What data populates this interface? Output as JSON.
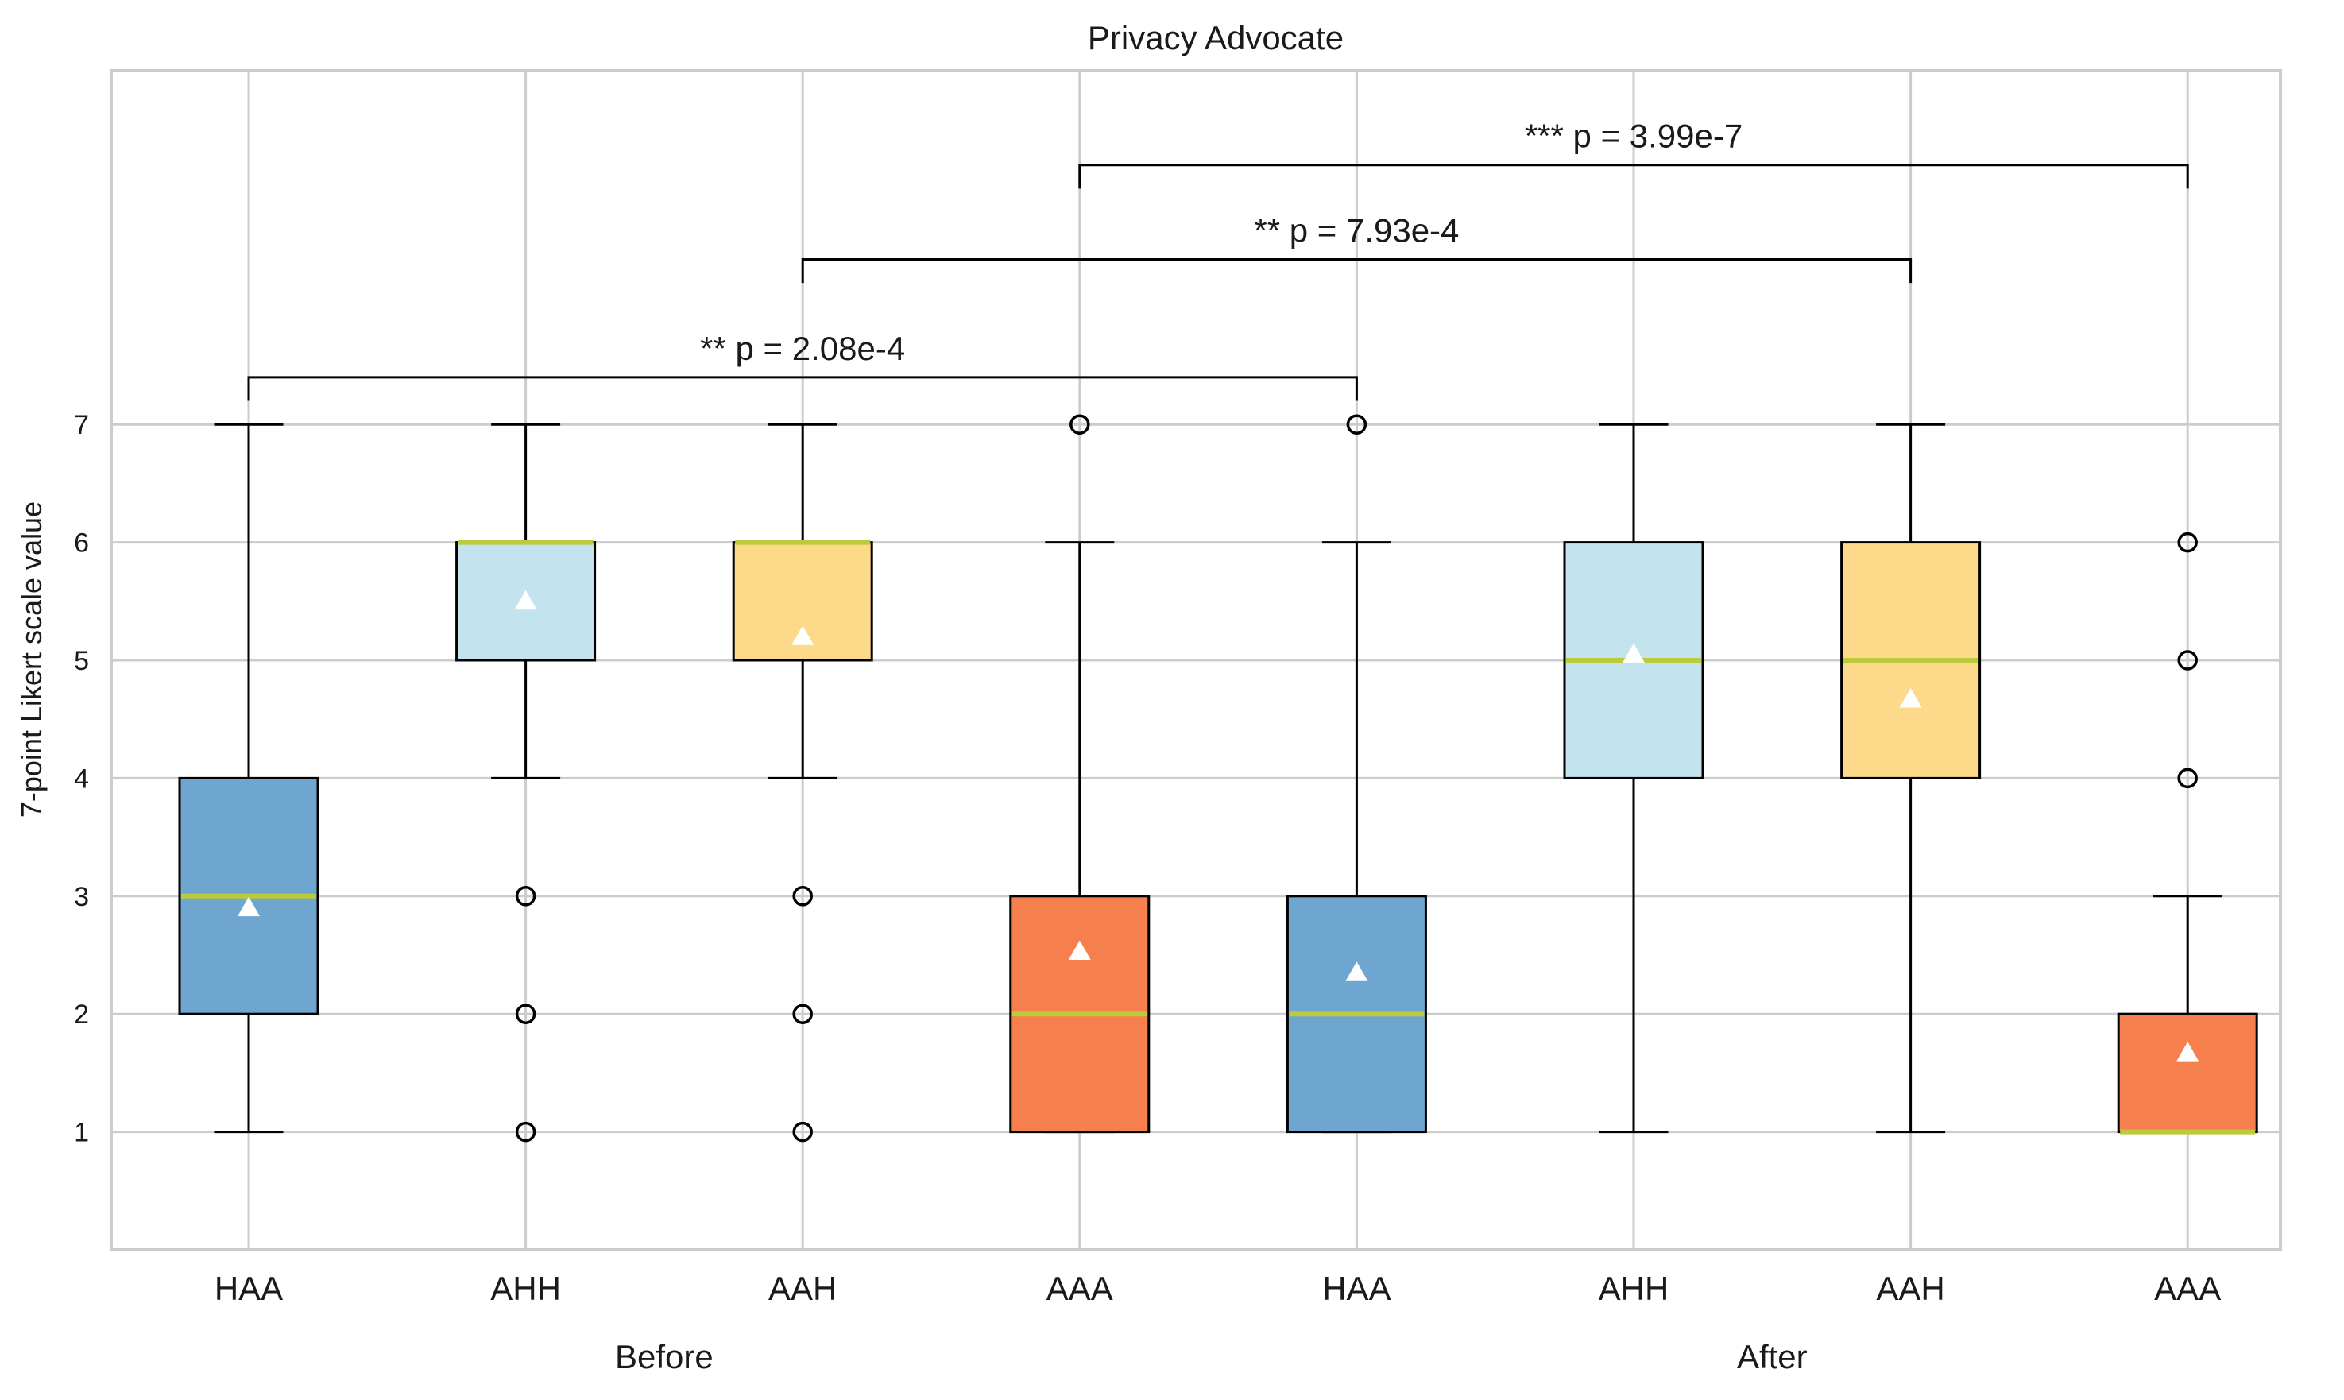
{
  "chart_data": {
    "type": "boxplot",
    "title": "Privacy Advocate",
    "ylabel": "7-point Likert scale value",
    "xlabel": "",
    "ylim": [
      0,
      10
    ],
    "yticks": [
      1,
      2,
      3,
      4,
      5,
      6,
      7
    ],
    "grid": true,
    "groups": [
      {
        "label": "Before",
        "box_indices": [
          0,
          1,
          2,
          3
        ]
      },
      {
        "label": "After",
        "box_indices": [
          4,
          5,
          6,
          7
        ]
      }
    ],
    "colors": {
      "HAA": "#6fa6cf",
      "AHH": "#c3e4ef",
      "AAH": "#fdda8a",
      "AAA": "#f5804d",
      "median": "#bccb3a",
      "mean_marker": "#ffffff"
    },
    "boxes": [
      {
        "label": "HAA",
        "phase": "Before",
        "whisker_low": 1,
        "q1": 2,
        "median": 3,
        "q3": 4,
        "whisker_high": 7,
        "mean": 2.9,
        "fliers": []
      },
      {
        "label": "AHH",
        "phase": "Before",
        "whisker_low": 4,
        "q1": 5,
        "median": 6,
        "q3": 6,
        "whisker_high": 7,
        "mean": 5.5,
        "fliers": [
          3,
          2,
          1
        ]
      },
      {
        "label": "AAH",
        "phase": "Before",
        "whisker_low": 4,
        "q1": 5,
        "median": 6,
        "q3": 6,
        "whisker_high": 7,
        "mean": 5.2,
        "fliers": [
          3,
          2,
          1
        ]
      },
      {
        "label": "AAA",
        "phase": "Before",
        "whisker_low": 1,
        "q1": 1,
        "median": 2,
        "q3": 3,
        "whisker_high": 6,
        "mean": 2.53,
        "fliers": [
          7
        ]
      },
      {
        "label": "HAA",
        "phase": "After",
        "whisker_low": 1,
        "q1": 1,
        "median": 2,
        "q3": 3,
        "whisker_high": 6,
        "mean": 2.35,
        "fliers": [
          7
        ]
      },
      {
        "label": "AHH",
        "phase": "After",
        "whisker_low": 1,
        "q1": 4,
        "median": 5,
        "q3": 6,
        "whisker_high": 7,
        "mean": 5.05,
        "fliers": []
      },
      {
        "label": "AAH",
        "phase": "After",
        "whisker_low": 1,
        "q1": 4,
        "median": 5,
        "q3": 6,
        "whisker_high": 7,
        "mean": 4.67,
        "fliers": []
      },
      {
        "label": "AAA",
        "phase": "After",
        "whisker_low": 1,
        "q1": 1,
        "median": 1,
        "q3": 2,
        "whisker_high": 3,
        "mean": 1.67,
        "fliers": [
          6,
          5,
          4
        ]
      }
    ],
    "significance": [
      {
        "from_box": 0,
        "to_box": 4,
        "level": 7.4,
        "label": "** p = 2.08e-4"
      },
      {
        "from_box": 2,
        "to_box": 6,
        "level": 8.4,
        "label": "** p = 7.93e-4"
      },
      {
        "from_box": 3,
        "to_box": 7,
        "level": 9.2,
        "label": "*** p = 3.99e-7"
      }
    ]
  }
}
